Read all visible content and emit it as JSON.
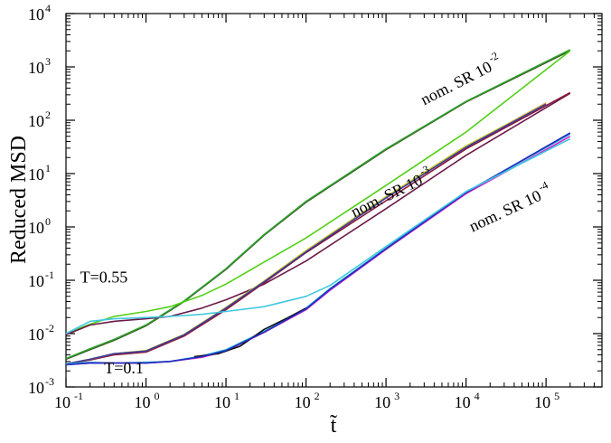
{
  "chart_data": {
    "type": "line",
    "title": "",
    "xlabel": "t̃",
    "ylabel": "Reduced MSD",
    "xscale": "log",
    "yscale": "log",
    "xlim": [
      0.1,
      500000
    ],
    "ylim": [
      0.001,
      10000
    ],
    "x_ticks": [
      {
        "base": "10",
        "exp": "-1",
        "value": 0.1
      },
      {
        "base": "10",
        "exp": "0",
        "value": 1
      },
      {
        "base": "10",
        "exp": "1",
        "value": 10
      },
      {
        "base": "10",
        "exp": "2",
        "value": 100
      },
      {
        "base": "10",
        "exp": "3",
        "value": 1000
      },
      {
        "base": "10",
        "exp": "4",
        "value": 10000
      },
      {
        "base": "10",
        "exp": "5",
        "value": 100000
      }
    ],
    "y_ticks": [
      {
        "base": "10",
        "exp": "-3",
        "value": 0.001
      },
      {
        "base": "10",
        "exp": "-2",
        "value": 0.01
      },
      {
        "base": "10",
        "exp": "-1",
        "value": 0.1
      },
      {
        "base": "10",
        "exp": "0",
        "value": 1
      },
      {
        "base": "10",
        "exp": "1",
        "value": 10
      },
      {
        "base": "10",
        "exp": "2",
        "value": 100
      },
      {
        "base": "10",
        "exp": "3",
        "value": 1000
      },
      {
        "base": "10",
        "exp": "4",
        "value": 10000
      }
    ],
    "grid": false,
    "series": [
      {
        "color": "#3b4d20",
        "x": [
          0.1,
          0.2,
          0.4,
          1,
          3,
          10,
          30,
          100,
          1000,
          10000,
          200000
        ],
        "y": [
          0.0033,
          0.005,
          0.0075,
          0.014,
          0.04,
          0.16,
          0.7,
          2.9,
          28,
          220,
          2000
        ]
      },
      {
        "color": "#2ca02c",
        "x": [
          0.1,
          0.2,
          0.4,
          1,
          3,
          10,
          30,
          100,
          1000,
          10000,
          200000
        ],
        "y": [
          0.0034,
          0.0052,
          0.0078,
          0.0145,
          0.041,
          0.165,
          0.72,
          3.0,
          29,
          225,
          2100
        ]
      },
      {
        "color": "#52d017",
        "x": [
          0.1,
          0.2,
          0.4,
          1,
          2,
          5,
          10,
          30,
          100,
          1000,
          10000,
          200000
        ],
        "y": [
          0.01,
          0.015,
          0.021,
          0.026,
          0.032,
          0.052,
          0.085,
          0.22,
          0.62,
          6.0,
          60,
          2000
        ]
      },
      {
        "color": "#6b1a4a",
        "x": [
          0.1,
          0.2,
          0.4,
          1,
          2,
          5,
          10,
          30,
          100,
          1000,
          10000,
          200000
        ],
        "y": [
          0.0095,
          0.0145,
          0.017,
          0.019,
          0.021,
          0.03,
          0.043,
          0.085,
          0.23,
          2.2,
          22,
          320
        ]
      },
      {
        "color": "#8b1538",
        "x": [
          0.1,
          0.2,
          0.4,
          1,
          3,
          10,
          30,
          100,
          1000,
          10000,
          200000
        ],
        "y": [
          0.0027,
          0.0032,
          0.004,
          0.0045,
          0.009,
          0.028,
          0.09,
          0.33,
          3.1,
          29,
          330
        ]
      },
      {
        "color": "#e67e22",
        "x": [
          0.1,
          0.2,
          0.4,
          1,
          3,
          10,
          30,
          100,
          1000,
          10000,
          100000
        ],
        "y": [
          0.0027,
          0.0033,
          0.0042,
          0.0047,
          0.0095,
          0.03,
          0.095,
          0.35,
          3.6,
          32,
          210
        ]
      },
      {
        "color": "#c8c820",
        "x": [
          0.1,
          0.2,
          0.4,
          1,
          3,
          10,
          30,
          100,
          1000,
          10000,
          100000
        ],
        "y": [
          0.0027,
          0.0033,
          0.0042,
          0.0048,
          0.0097,
          0.031,
          0.097,
          0.36,
          3.7,
          33,
          205
        ]
      },
      {
        "color": "#3a3aa0",
        "x": [
          0.1,
          0.2,
          0.4,
          1,
          3,
          10,
          30,
          100,
          1000,
          10000,
          100000
        ],
        "y": [
          0.0027,
          0.0033,
          0.0042,
          0.0047,
          0.0095,
          0.03,
          0.094,
          0.34,
          3.5,
          31,
          200
        ]
      },
      {
        "color": "#20b2d0",
        "x": [
          0.1,
          0.2,
          0.4,
          1,
          2,
          5,
          10,
          30,
          100,
          200,
          1000,
          10000,
          200000
        ],
        "y": [
          0.0027,
          0.0029,
          0.0028,
          0.0029,
          0.003,
          0.0038,
          0.005,
          0.011,
          0.03,
          0.07,
          0.4,
          4.5,
          55
        ]
      },
      {
        "color": "#d020d0",
        "x": [
          0.1,
          0.2,
          0.4,
          1,
          2,
          5,
          10,
          30,
          100,
          200,
          1000,
          10000,
          200000
        ],
        "y": [
          0.0026,
          0.0028,
          0.0028,
          0.0028,
          0.003,
          0.0036,
          0.0047,
          0.0105,
          0.028,
          0.065,
          0.38,
          4.2,
          50
        ]
      },
      {
        "color": "#101010",
        "x": [
          4,
          8,
          15,
          30,
          60,
          100
        ],
        "y": [
          0.0037,
          0.0042,
          0.0058,
          0.012,
          0.02,
          0.03
        ]
      },
      {
        "color": "#2030c0",
        "x": [
          0.1,
          0.2,
          0.4,
          1,
          2,
          5,
          10,
          30,
          100,
          200,
          1000,
          10000,
          200000
        ],
        "y": [
          0.0026,
          0.0028,
          0.0028,
          0.0028,
          0.003,
          0.0037,
          0.0048,
          0.0107,
          0.029,
          0.068,
          0.39,
          4.4,
          58
        ]
      },
      {
        "color": "#40c8e0",
        "x": [
          0.1,
          0.2,
          0.4,
          1,
          2,
          5,
          10,
          30,
          100,
          200,
          1000,
          10000,
          200000
        ],
        "y": [
          0.01,
          0.017,
          0.019,
          0.02,
          0.021,
          0.023,
          0.026,
          0.032,
          0.05,
          0.08,
          0.43,
          4.6,
          45
        ]
      }
    ],
    "annotations": [
      {
        "text": "nom. SR 10",
        "exp": "-2",
        "x": 3000,
        "y": 190,
        "angle": -27
      },
      {
        "text": "nom. SR 10",
        "exp": "-3",
        "x": 400,
        "y": 1.5,
        "angle": -26
      },
      {
        "text": "nom. SR 10",
        "exp": "-4",
        "x": 12000,
        "y": 0.8,
        "angle": -25
      },
      {
        "text": "T=0.55",
        "x": 0.15,
        "y": 0.09
      },
      {
        "text": "T=0.1",
        "x": 0.3,
        "y": 0.0018
      }
    ]
  }
}
